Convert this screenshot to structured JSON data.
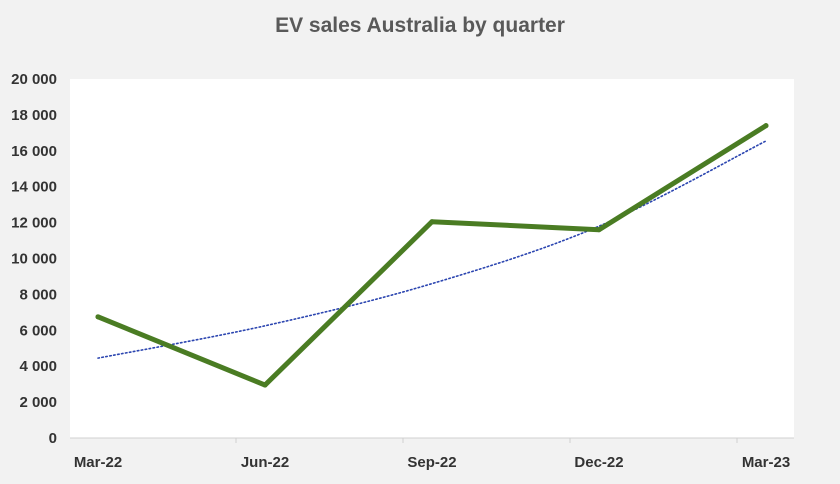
{
  "chart_data": {
    "type": "line",
    "title": "EV sales Australia by quarter",
    "xlabel": "",
    "ylabel": "",
    "categories": [
      "Mar-22",
      "Jun-22",
      "Sep-22",
      "Dec-22",
      "Mar-23"
    ],
    "series": [
      {
        "values": [
          6750,
          2950,
          12050,
          11600,
          17400
        ],
        "color": "#4a7c23"
      },
      {
        "values": [
          4450,
          6250,
          8600,
          11800,
          16550
        ],
        "color": "#2b45b0",
        "style": "dotted",
        "kind": "trendline"
      }
    ],
    "ylim": [
      0,
      20000
    ],
    "yticks": [
      "0",
      "2 000",
      "4 000",
      "6 000",
      "8 000",
      "10 000",
      "12 000",
      "14 000",
      "16 000",
      "18 000",
      "20 000"
    ],
    "grid": false,
    "legend": "none"
  }
}
